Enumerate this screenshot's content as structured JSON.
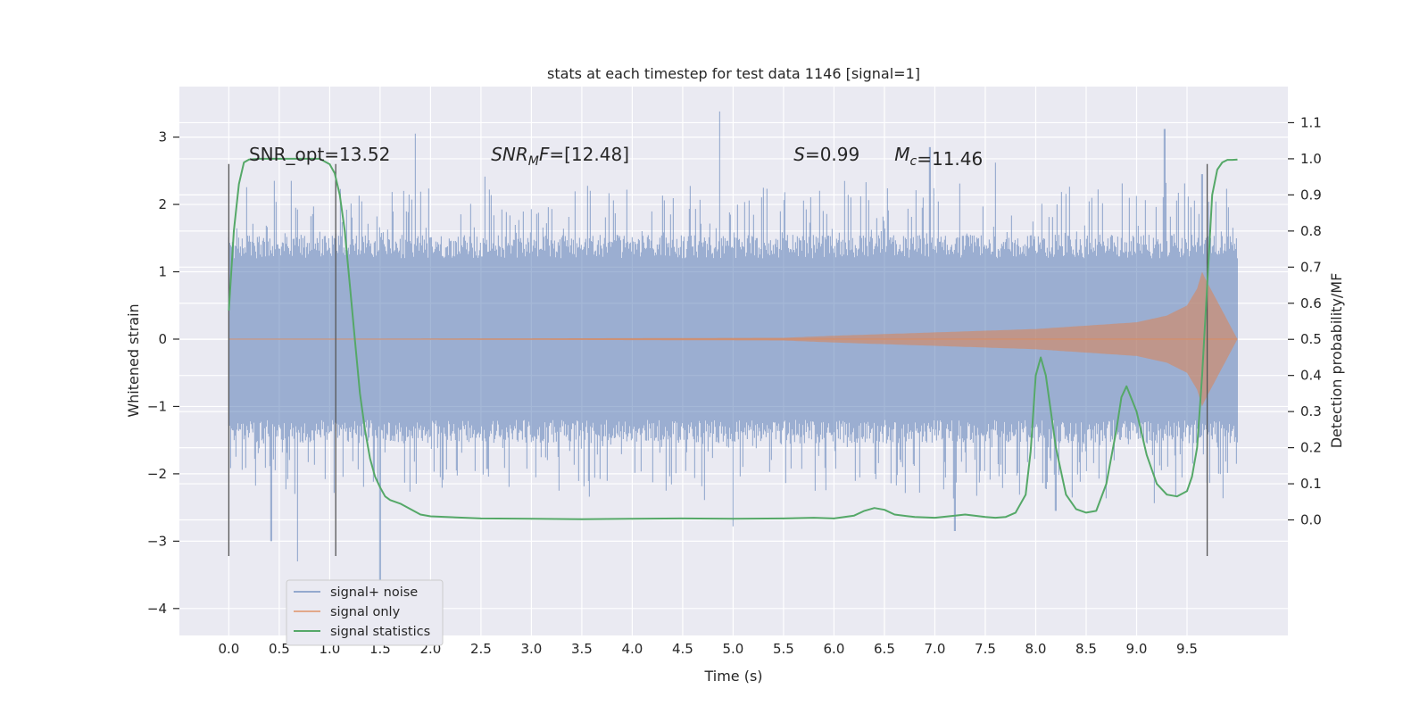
{
  "chart_data": {
    "type": "line",
    "title": "stats at each timestep for test data 1146 [signal=1]",
    "xlabel": "Time (s)",
    "ylabel": "Whitened strain",
    "y2label": "Detection probability/MF",
    "xlim": [
      -0.49,
      10.5
    ],
    "ylim": [
      -4.4,
      3.75
    ],
    "y2lim": [
      -0.32,
      1.2
    ],
    "xticks": [
      0.0,
      0.5,
      1.0,
      1.5,
      2.0,
      2.5,
      3.0,
      3.5,
      4.0,
      4.5,
      5.0,
      5.5,
      6.0,
      6.5,
      7.0,
      7.5,
      8.0,
      8.5,
      9.0,
      9.5
    ],
    "xtick_labels": [
      "0.0",
      "0.5",
      "1.0",
      "1.5",
      "2.0",
      "2.5",
      "3.0",
      "3.5",
      "4.0",
      "4.5",
      "5.0",
      "5.5",
      "6.0",
      "6.5",
      "7.0",
      "7.5",
      "8.0",
      "8.5",
      "9.0",
      "9.5"
    ],
    "yticks": [
      3,
      2,
      1,
      0,
      -1,
      -2,
      -3,
      -4
    ],
    "ytick_labels": [
      "3",
      "2",
      "1",
      "0",
      "−1",
      "−2",
      "−3",
      "−4"
    ],
    "y2ticks": [
      1.1,
      1.0,
      0.9,
      0.8,
      0.7,
      0.6,
      0.5,
      0.4,
      0.3,
      0.2,
      0.1,
      0.0
    ],
    "y2tick_labels": [
      "1.1",
      "1.0",
      "0.9",
      "0.8",
      "0.7",
      "0.6",
      "0.5",
      "0.4",
      "0.3",
      "0.2",
      "0.1",
      "0.0"
    ],
    "grid": true,
    "legend_position": "lower-left",
    "annotations": [
      {
        "id": "snr-opt",
        "text": "SNR_opt=13.52",
        "x": 0.2,
        "y": 2.65
      },
      {
        "id": "snr-mf",
        "text": "SNR_MF=[12.48]",
        "x": 2.6,
        "y": 2.65
      },
      {
        "id": "stat-s",
        "text": "S=0.99",
        "x": 5.6,
        "y": 2.65
      },
      {
        "id": "chirp-mass",
        "text": "M_c=11.46",
        "x": 6.6,
        "y": 2.65
      }
    ],
    "vlines": [
      {
        "x": 0.0,
        "y_range": [
          -3.22,
          2.6
        ]
      },
      {
        "x": 1.06,
        "y_range": [
          -3.22,
          2.6
        ]
      },
      {
        "x": 9.7,
        "y_range": [
          -3.22,
          2.6
        ]
      }
    ],
    "series": [
      {
        "name": "signal+ noise",
        "color": "#4c72b0",
        "axis": "left",
        "x_range": [
          0,
          10.0
        ],
        "band_lower": -1.2,
        "band_upper": 1.2,
        "peaks_up": [
          [
            0.45,
            2.35
          ],
          [
            0.62,
            2.35
          ],
          [
            1.85,
            3.05
          ],
          [
            4.87,
            3.38
          ],
          [
            6.95,
            2.85
          ],
          [
            7.6,
            2.62
          ],
          [
            9.28,
            3.12
          ],
          [
            9.65,
            2.45
          ]
        ],
        "peaks_down": [
          [
            0.42,
            -3.0
          ],
          [
            0.68,
            -3.3
          ],
          [
            1.5,
            -3.6
          ],
          [
            5.0,
            -2.78
          ],
          [
            7.2,
            -2.85
          ],
          [
            8.2,
            -2.55
          ]
        ]
      },
      {
        "name": "signal only",
        "color": "#dd8452",
        "axis": "left",
        "x": [
          0,
          5.5,
          6.0,
          7.0,
          8.0,
          9.0,
          9.3,
          9.5,
          9.6,
          9.65,
          9.68,
          10.0
        ],
        "amplitude": [
          0,
          0.02,
          0.05,
          0.1,
          0.15,
          0.25,
          0.35,
          0.5,
          0.75,
          1.0,
          0.9,
          0
        ]
      },
      {
        "name": "signal statistics",
        "color": "#55a868",
        "axis": "right",
        "x": [
          0.0,
          0.05,
          0.1,
          0.15,
          0.2,
          0.3,
          0.5,
          0.7,
          0.9,
          1.0,
          1.05,
          1.1,
          1.15,
          1.2,
          1.25,
          1.3,
          1.35,
          1.4,
          1.45,
          1.5,
          1.55,
          1.6,
          1.7,
          1.8,
          1.9,
          2.0,
          2.5,
          3.0,
          3.5,
          4.0,
          4.5,
          5.0,
          5.5,
          5.8,
          6.0,
          6.2,
          6.3,
          6.4,
          6.5,
          6.6,
          6.8,
          7.0,
          7.2,
          7.3,
          7.5,
          7.6,
          7.7,
          7.8,
          7.9,
          7.95,
          8.0,
          8.05,
          8.1,
          8.2,
          8.3,
          8.4,
          8.5,
          8.6,
          8.7,
          8.8,
          8.85,
          8.9,
          9.0,
          9.1,
          9.2,
          9.3,
          9.4,
          9.5,
          9.55,
          9.6,
          9.65,
          9.7,
          9.75,
          9.8,
          9.85,
          9.9,
          9.95,
          10.0
        ],
        "values": [
          0.58,
          0.8,
          0.93,
          0.99,
          0.998,
          1.0,
          1.0,
          1.0,
          1.0,
          0.985,
          0.96,
          0.9,
          0.8,
          0.65,
          0.5,
          0.35,
          0.25,
          0.17,
          0.12,
          0.09,
          0.065,
          0.055,
          0.045,
          0.03,
          0.015,
          0.01,
          0.004,
          0.003,
          0.002,
          0.003,
          0.004,
          0.003,
          0.004,
          0.006,
          0.004,
          0.012,
          0.025,
          0.033,
          0.028,
          0.015,
          0.008,
          0.006,
          0.012,
          0.015,
          0.008,
          0.006,
          0.008,
          0.02,
          0.07,
          0.19,
          0.4,
          0.45,
          0.4,
          0.2,
          0.07,
          0.03,
          0.02,
          0.025,
          0.1,
          0.25,
          0.34,
          0.37,
          0.3,
          0.18,
          0.1,
          0.07,
          0.065,
          0.08,
          0.12,
          0.2,
          0.4,
          0.65,
          0.9,
          0.97,
          0.99,
          0.997,
          0.997,
          0.998
        ]
      }
    ]
  }
}
